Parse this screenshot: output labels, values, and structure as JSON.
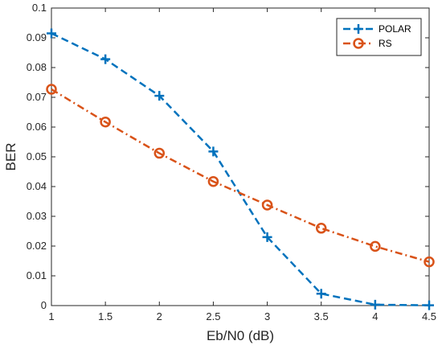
{
  "chart_data": {
    "type": "line",
    "title": "",
    "xlabel": "Eb/N0 (dB)",
    "ylabel": "BER",
    "xlim": [
      1,
      4.5
    ],
    "ylim": [
      0,
      0.1
    ],
    "x_ticks": [
      1,
      1.5,
      2,
      2.5,
      3,
      3.5,
      4,
      4.5
    ],
    "x_tick_labels": [
      "1",
      "1.5",
      "2",
      "2.5",
      "3",
      "3.5",
      "4",
      "4.5"
    ],
    "y_ticks": [
      0,
      0.01,
      0.02,
      0.03,
      0.04,
      0.05,
      0.06,
      0.07,
      0.08,
      0.09,
      0.1
    ],
    "y_tick_labels": [
      "0",
      "0.01",
      "0.02",
      "0.03",
      "0.04",
      "0.05",
      "0.06",
      "0.07",
      "0.08",
      "0.09",
      "0.1"
    ],
    "grid": false,
    "legend_position": "top-right",
    "x": [
      1,
      1.5,
      2,
      2.5,
      3,
      3.5,
      4,
      4.5
    ],
    "series": [
      {
        "name": "POLAR",
        "values": [
          0.0915,
          0.0828,
          0.0705,
          0.0518,
          0.023,
          0.004,
          0.0003,
          0.0001
        ],
        "color": "#0072BD",
        "line_style": "dashed",
        "marker": "plus"
      },
      {
        "name": "RS",
        "values": [
          0.0727,
          0.0617,
          0.0512,
          0.0417,
          0.0338,
          0.026,
          0.0199,
          0.0147
        ],
        "color": "#D95319",
        "line_style": "dash-dot",
        "marker": "circle"
      }
    ]
  }
}
